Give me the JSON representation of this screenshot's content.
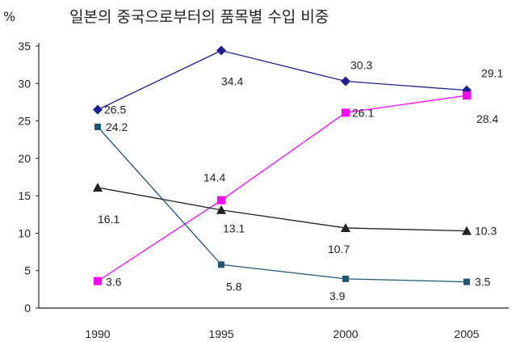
{
  "chart_data": {
    "type": "line",
    "title": "일본의 중국으로부터의 품목별 수입 비중",
    "ylabel": "%",
    "xlabel": "",
    "categories": [
      "1990",
      "1995",
      "2000",
      "2005"
    ],
    "ylim": [
      0,
      35
    ],
    "yticks": [
      "0",
      "5",
      "10",
      "15",
      "20",
      "25",
      "30",
      "35"
    ],
    "grid": false,
    "legend": "none",
    "series": [
      {
        "color": "#1e1e96",
        "marker": "diamond",
        "values": [
          26.5,
          34.4,
          30.3,
          29.1
        ],
        "labels": [
          "26.5",
          "34.4",
          "30.3",
          "29.1"
        ]
      },
      {
        "color": "#ff00ff",
        "marker": "square",
        "values": [
          3.6,
          14.4,
          26.1,
          28.4
        ],
        "labels": [
          "3.6",
          "14.4",
          "26.1",
          "28.4"
        ]
      },
      {
        "color": "#222222",
        "marker": "triangle",
        "values": [
          16.1,
          13.1,
          10.7,
          10.3
        ],
        "labels": [
          "16.1",
          "13.1",
          "10.7",
          "10.3"
        ]
      },
      {
        "color": "#1f5577",
        "marker": "square-small",
        "values": [
          24.2,
          5.8,
          3.9,
          3.5
        ],
        "labels": [
          "24.2",
          "5.8",
          "3.9",
          "3.5"
        ]
      }
    ]
  }
}
